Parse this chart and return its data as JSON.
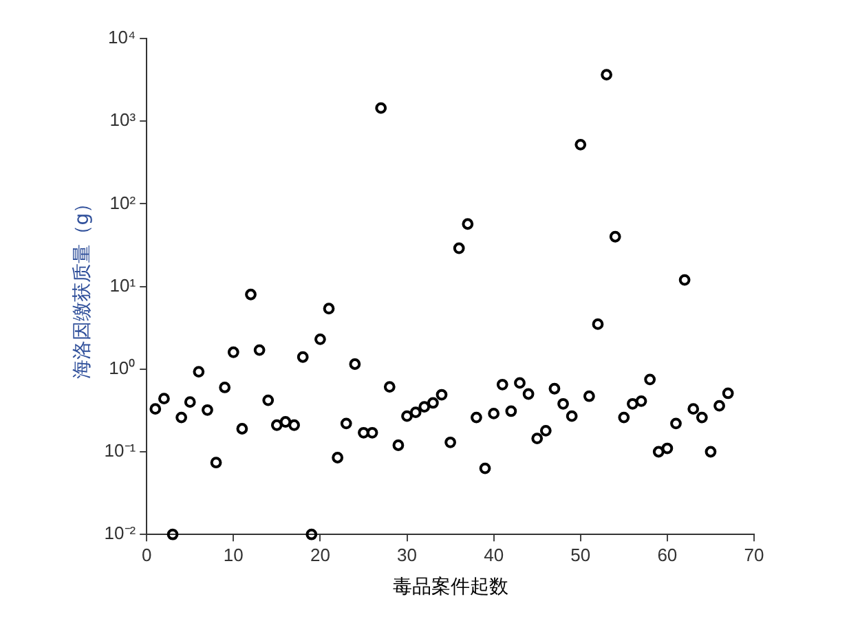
{
  "chart_data": {
    "type": "scatter",
    "xlabel": "毒品案件起数",
    "ylabel": "海洛因缴获质量（g）",
    "x": [
      1,
      2,
      3,
      4,
      5,
      6,
      7,
      8,
      9,
      10,
      11,
      12,
      13,
      14,
      15,
      16,
      17,
      18,
      19,
      20,
      21,
      22,
      23,
      24,
      25,
      26,
      27,
      28,
      29,
      30,
      31,
      32,
      33,
      34,
      35,
      36,
      37,
      38,
      39,
      40,
      41,
      42,
      43,
      44,
      45,
      46,
      47,
      48,
      49,
      50,
      51,
      52,
      53,
      54,
      55,
      56,
      57,
      58,
      59,
      60,
      61,
      62,
      63,
      64,
      65,
      66,
      67
    ],
    "values": [
      0.33,
      0.44,
      0.01,
      0.26,
      0.4,
      0.93,
      0.32,
      0.074,
      0.6,
      1.6,
      0.19,
      8,
      1.7,
      0.42,
      0.21,
      0.23,
      0.21,
      1.4,
      0.01,
      2.3,
      5.4,
      0.085,
      0.22,
      1.15,
      0.17,
      0.17,
      1440,
      0.61,
      0.12,
      0.27,
      0.3,
      0.35,
      0.39,
      0.49,
      0.13,
      29,
      57,
      0.26,
      0.063,
      0.29,
      0.65,
      0.31,
      0.68,
      0.5,
      0.145,
      0.18,
      0.58,
      0.38,
      0.27,
      520,
      0.47,
      3.5,
      3650,
      40,
      0.26,
      0.38,
      0.41,
      0.75,
      0.1,
      0.11,
      0.22,
      12,
      0.33,
      0.26,
      0.1,
      0.36,
      0.51
    ],
    "color": "#000000",
    "marker": "circle",
    "log": "y",
    "grid": false,
    "legend": false,
    "xlim": [
      0,
      70
    ],
    "xticks": [
      0,
      10,
      20,
      30,
      40,
      50,
      60,
      70
    ],
    "ylim": [
      0.01,
      10000
    ],
    "yticks": [
      {
        "value": 0.01,
        "label": "10⁻²"
      },
      {
        "value": 0.1,
        "label": "10⁻¹"
      },
      {
        "value": 1,
        "label": "10⁰"
      },
      {
        "value": 10,
        "label": "10¹"
      },
      {
        "value": 100,
        "label": "10²"
      },
      {
        "value": 1000,
        "label": "10³"
      },
      {
        "value": 10000,
        "label": "10⁴"
      }
    ]
  }
}
